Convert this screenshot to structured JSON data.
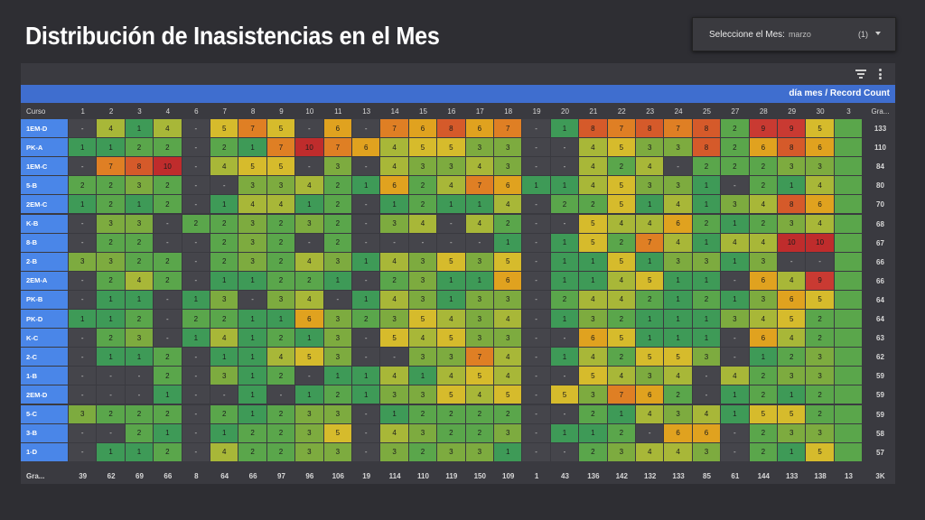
{
  "page_title": "Distribución de Inasistencias en el Mes",
  "month_filter": {
    "label": "Seleccione el Mes:",
    "value": "marzo",
    "count": "(1)"
  },
  "table": {
    "header_label": "día mes / Record Count",
    "corner_label": "Curso",
    "total_label": "Gra...",
    "days": [
      "1",
      "2",
      "3",
      "4",
      "6",
      "7",
      "8",
      "9",
      "10",
      "11",
      "13",
      "14",
      "15",
      "16",
      "17",
      "18",
      "19",
      "20",
      "21",
      "22",
      "23",
      "24",
      "25",
      "27",
      "28",
      "29",
      "30",
      "3"
    ],
    "rows": [
      {
        "name": "1EM-D",
        "values": [
          "-",
          "4",
          "1",
          "4",
          "-",
          "5",
          "7",
          "5",
          "-",
          "6",
          "-",
          "7",
          "6",
          "8",
          "6",
          "7",
          "-",
          "1",
          "8",
          "7",
          "8",
          "7",
          "8",
          "2",
          "9",
          "9",
          "5",
          ""
        ],
        "total": "133"
      },
      {
        "name": "PK-A",
        "values": [
          "1",
          "1",
          "2",
          "2",
          "-",
          "2",
          "1",
          "7",
          "10",
          "7",
          "6",
          "4",
          "5",
          "5",
          "3",
          "3",
          "-",
          "-",
          "4",
          "5",
          "3",
          "3",
          "8",
          "2",
          "6",
          "8",
          "6",
          ""
        ],
        "total": "110"
      },
      {
        "name": "1EM-C",
        "values": [
          "-",
          "7",
          "8",
          "10",
          "-",
          "4",
          "5",
          "5",
          "-",
          "3",
          "-",
          "4",
          "3",
          "3",
          "4",
          "3",
          "-",
          "-",
          "4",
          "2",
          "4",
          "-",
          "2",
          "2",
          "2",
          "3",
          "3",
          ""
        ],
        "total": "84"
      },
      {
        "name": "5-B",
        "values": [
          "2",
          "2",
          "3",
          "2",
          "-",
          "-",
          "3",
          "3",
          "4",
          "2",
          "1",
          "6",
          "2",
          "4",
          "7",
          "6",
          "1",
          "1",
          "4",
          "5",
          "3",
          "3",
          "1",
          "-",
          "2",
          "1",
          "4",
          ""
        ],
        "total": "80"
      },
      {
        "name": "2EM-C",
        "values": [
          "1",
          "2",
          "1",
          "2",
          "-",
          "1",
          "4",
          "4",
          "1",
          "2",
          "-",
          "1",
          "2",
          "1",
          "1",
          "4",
          "-",
          "2",
          "2",
          "5",
          "1",
          "4",
          "1",
          "3",
          "4",
          "8",
          "6",
          ""
        ],
        "total": "70"
      },
      {
        "name": "K-B",
        "values": [
          "-",
          "3",
          "3",
          "-",
          "2",
          "2",
          "3",
          "2",
          "3",
          "2",
          "-",
          "3",
          "4",
          "-",
          "4",
          "2",
          "-",
          "-",
          "5",
          "4",
          "4",
          "6",
          "2",
          "1",
          "2",
          "3",
          "4",
          ""
        ],
        "total": "68"
      },
      {
        "name": "8-B",
        "values": [
          "-",
          "2",
          "2",
          "-",
          "-",
          "2",
          "3",
          "2",
          "-",
          "2",
          "-",
          "-",
          "-",
          "-",
          "-",
          "1",
          "-",
          "1",
          "5",
          "2",
          "7",
          "4",
          "1",
          "4",
          "4",
          "10",
          "10",
          ""
        ],
        "total": "67"
      },
      {
        "name": "2-B",
        "values": [
          "3",
          "3",
          "2",
          "2",
          "-",
          "2",
          "3",
          "2",
          "4",
          "3",
          "1",
          "4",
          "3",
          "5",
          "3",
          "5",
          "-",
          "1",
          "1",
          "5",
          "1",
          "3",
          "3",
          "1",
          "3",
          "-",
          "-",
          ""
        ],
        "total": "66"
      },
      {
        "name": "2EM-A",
        "values": [
          "-",
          "2",
          "4",
          "2",
          "-",
          "1",
          "1",
          "2",
          "2",
          "1",
          "-",
          "2",
          "3",
          "1",
          "1",
          "6",
          "-",
          "1",
          "1",
          "4",
          "5",
          "1",
          "1",
          "-",
          "6",
          "4",
          "9",
          ""
        ],
        "total": "66"
      },
      {
        "name": "PK-B",
        "values": [
          "-",
          "1",
          "1",
          "-",
          "1",
          "3",
          "-",
          "3",
          "4",
          "-",
          "1",
          "4",
          "3",
          "1",
          "3",
          "3",
          "-",
          "2",
          "4",
          "4",
          "2",
          "1",
          "2",
          "1",
          "3",
          "6",
          "5",
          ""
        ],
        "total": "64"
      },
      {
        "name": "PK-D",
        "values": [
          "1",
          "1",
          "2",
          "-",
          "2",
          "2",
          "1",
          "1",
          "6",
          "3",
          "2",
          "3",
          "5",
          "4",
          "3",
          "4",
          "-",
          "1",
          "3",
          "2",
          "1",
          "1",
          "1",
          "3",
          "4",
          "5",
          "2",
          ""
        ],
        "total": "64"
      },
      {
        "name": "K-C",
        "values": [
          "-",
          "2",
          "3",
          "-",
          "1",
          "4",
          "1",
          "2",
          "1",
          "3",
          "-",
          "5",
          "4",
          "5",
          "3",
          "3",
          "-",
          "-",
          "6",
          "5",
          "1",
          "1",
          "1",
          "-",
          "6",
          "4",
          "2",
          ""
        ],
        "total": "63"
      },
      {
        "name": "2-C",
        "values": [
          "-",
          "1",
          "1",
          "2",
          "-",
          "1",
          "1",
          "4",
          "5",
          "3",
          "-",
          "-",
          "3",
          "3",
          "7",
          "4",
          "-",
          "1",
          "4",
          "2",
          "5",
          "5",
          "3",
          "-",
          "1",
          "2",
          "3",
          ""
        ],
        "total": "62"
      },
      {
        "name": "1-B",
        "values": [
          "-",
          "-",
          "-",
          "2",
          "-",
          "3",
          "1",
          "2",
          "-",
          "1",
          "1",
          "4",
          "1",
          "4",
          "5",
          "4",
          "-",
          "-",
          "5",
          "4",
          "3",
          "4",
          "-",
          "4",
          "2",
          "3",
          "3",
          ""
        ],
        "total": "59"
      },
      {
        "name": "2EM-D",
        "values": [
          "-",
          "-",
          "-",
          "1",
          "-",
          "-",
          "1",
          "-",
          "1",
          "2",
          "1",
          "3",
          "3",
          "5",
          "4",
          "5",
          "-",
          "5",
          "3",
          "7",
          "6",
          "2",
          "-",
          "1",
          "2",
          "1",
          "2",
          ""
        ],
        "total": "59"
      },
      {
        "name": "5-C",
        "values": [
          "3",
          "2",
          "2",
          "2",
          "-",
          "2",
          "1",
          "2",
          "3",
          "3",
          "-",
          "1",
          "2",
          "2",
          "2",
          "2",
          "-",
          "-",
          "2",
          "1",
          "4",
          "3",
          "4",
          "1",
          "5",
          "5",
          "2",
          ""
        ],
        "total": "59"
      },
      {
        "name": "3-B",
        "values": [
          "-",
          "-",
          "2",
          "1",
          "-",
          "1",
          "2",
          "2",
          "3",
          "5",
          "-",
          "4",
          "3",
          "2",
          "2",
          "3",
          "-",
          "1",
          "1",
          "2",
          "-",
          "6",
          "6",
          "-",
          "2",
          "3",
          "3",
          ""
        ],
        "total": "58"
      },
      {
        "name": "1-D",
        "values": [
          "-",
          "1",
          "1",
          "2",
          "-",
          "4",
          "2",
          "2",
          "3",
          "3",
          "-",
          "3",
          "2",
          "3",
          "3",
          "1",
          "-",
          "-",
          "2",
          "3",
          "4",
          "4",
          "3",
          "-",
          "2",
          "1",
          "5",
          ""
        ],
        "total": "57"
      }
    ],
    "footer_values": [
      "39",
      "62",
      "69",
      "66",
      "8",
      "64",
      "66",
      "97",
      "96",
      "106",
      "19",
      "114",
      "110",
      "119",
      "150",
      "109",
      "1",
      "43",
      "136",
      "142",
      "132",
      "133",
      "85",
      "61",
      "144",
      "133",
      "138",
      "13"
    ],
    "footer_total": "3K"
  },
  "colors": {
    "accent": "#4a86e8",
    "scale": [
      "#3e9a57",
      "#5aa64b",
      "#7dab3f",
      "#a8b738",
      "#d6bb2c",
      "#e0a21f",
      "#df7f24",
      "#d55a2a",
      "#c93a32",
      "#bf2c2c"
    ]
  }
}
